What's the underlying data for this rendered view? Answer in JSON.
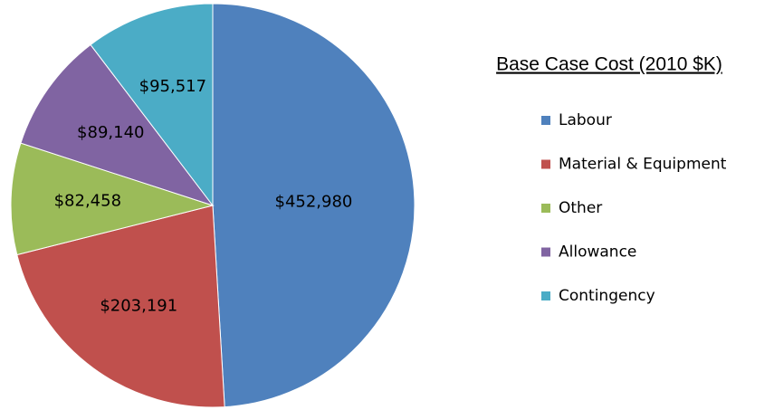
{
  "chart_data": {
    "type": "pie",
    "title": "Base Case Cost (2010 $K)",
    "categories": [
      "Labour",
      "Material & Equipment",
      "Other",
      "Allowance",
      "Contingency"
    ],
    "values": [
      452980,
      203191,
      82458,
      89140,
      95517
    ],
    "value_labels": [
      "$452,980",
      "$203,191",
      "$82,458",
      "$89,140",
      "$95,517"
    ],
    "colors": [
      "#4f81bd",
      "#c0504d",
      "#9bbb59",
      "#8064a2",
      "#4bacc6"
    ],
    "legend": "right"
  }
}
